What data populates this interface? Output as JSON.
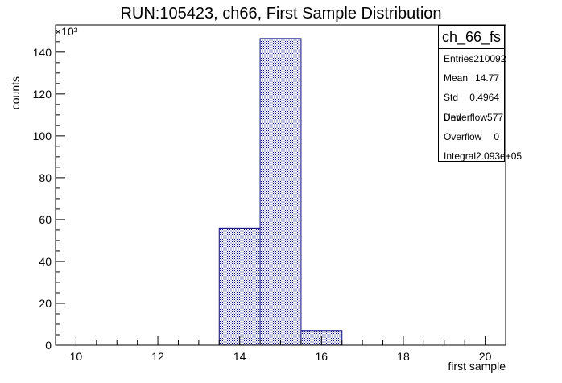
{
  "chart_data": {
    "type": "bar",
    "title": "RUN:105423, ch66, First Sample Distribution",
    "xlabel": "first sample",
    "ylabel": "counts",
    "y_multiplier": "×10³",
    "xlim": [
      9.5,
      20.5
    ],
    "ylim": [
      0,
      153
    ],
    "x_ticks": [
      10,
      12,
      14,
      16,
      18,
      20
    ],
    "y_ticks": [
      0,
      20,
      40,
      60,
      80,
      100,
      120,
      140
    ],
    "bins": [
      {
        "x_low": 13.5,
        "x_high": 14.5,
        "value": 56.0
      },
      {
        "x_low": 14.5,
        "x_high": 15.5,
        "value": 146.5
      },
      {
        "x_low": 15.5,
        "x_high": 16.5,
        "value": 7.0
      }
    ],
    "fill_color": "#000080",
    "stats": {
      "name": "ch_66_fs",
      "rows": [
        {
          "label": "Entries",
          "value": "210092"
        },
        {
          "label": "Mean",
          "value": "14.77"
        },
        {
          "label": "Std Dev",
          "value": "0.4964"
        },
        {
          "label": "Underflow",
          "value": "577"
        },
        {
          "label": "Overflow",
          "value": "0"
        },
        {
          "label": "Integral",
          "value": "2.093e+05"
        }
      ]
    }
  }
}
